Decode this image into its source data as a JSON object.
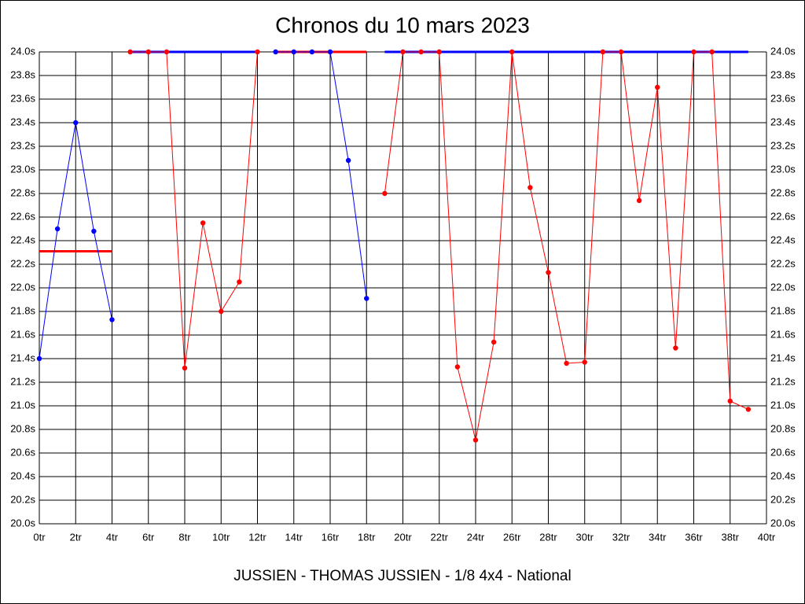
{
  "chart_data": {
    "type": "line",
    "title": "Chronos du 10 mars 2023",
    "subtitle": "JUSSIEN - THOMAS JUSSIEN - 1/8 4x4 - National",
    "xlim": [
      0,
      40
    ],
    "ylim": [
      20.0,
      24.0
    ],
    "grid": true,
    "right_axis_labels": true,
    "xticks": [
      {
        "value": 0,
        "label": "0tr"
      },
      {
        "value": 2,
        "label": "2tr"
      },
      {
        "value": 4,
        "label": "4tr"
      },
      {
        "value": 6,
        "label": "6tr"
      },
      {
        "value": 8,
        "label": "8tr"
      },
      {
        "value": 10,
        "label": "10tr"
      },
      {
        "value": 12,
        "label": "12tr"
      },
      {
        "value": 14,
        "label": "14tr"
      },
      {
        "value": 16,
        "label": "16tr"
      },
      {
        "value": 18,
        "label": "18tr"
      },
      {
        "value": 20,
        "label": "20tr"
      },
      {
        "value": 22,
        "label": "22tr"
      },
      {
        "value": 24,
        "label": "24tr"
      },
      {
        "value": 26,
        "label": "26tr"
      },
      {
        "value": 28,
        "label": "28tr"
      },
      {
        "value": 30,
        "label": "30tr"
      },
      {
        "value": 32,
        "label": "32tr"
      },
      {
        "value": 34,
        "label": "34tr"
      },
      {
        "value": 36,
        "label": "36tr"
      },
      {
        "value": 38,
        "label": "38tr"
      },
      {
        "value": 40,
        "label": "40tr"
      }
    ],
    "yticks": [
      {
        "value": 20.0,
        "label": "20.0s"
      },
      {
        "value": 20.2,
        "label": "20.2s"
      },
      {
        "value": 20.4,
        "label": "20.4s"
      },
      {
        "value": 20.6,
        "label": "20.6s"
      },
      {
        "value": 20.8,
        "label": "20.8s"
      },
      {
        "value": 21.0,
        "label": "21.0s"
      },
      {
        "value": 21.2,
        "label": "21.2s"
      },
      {
        "value": 21.4,
        "label": "21.4s"
      },
      {
        "value": 21.6,
        "label": "21.6s"
      },
      {
        "value": 21.8,
        "label": "21.8s"
      },
      {
        "value": 22.0,
        "label": "22.0s"
      },
      {
        "value": 22.2,
        "label": "22.2s"
      },
      {
        "value": 22.4,
        "label": "22.4s"
      },
      {
        "value": 22.6,
        "label": "22.6s"
      },
      {
        "value": 22.8,
        "label": "22.8s"
      },
      {
        "value": 23.0,
        "label": "23.0s"
      },
      {
        "value": 23.2,
        "label": "23.2s"
      },
      {
        "value": 23.4,
        "label": "23.4s"
      },
      {
        "value": 23.6,
        "label": "23.6s"
      },
      {
        "value": 23.8,
        "label": "23.8s"
      },
      {
        "value": 24.0,
        "label": "24.0s"
      }
    ],
    "series": [
      {
        "color": "#ff0000",
        "markers": false,
        "width": 3,
        "x": [
          0,
          4
        ],
        "values": [
          22.31,
          22.31
        ]
      },
      {
        "color": "#0000ff",
        "markers": false,
        "width": 3,
        "x": [
          5,
          12
        ],
        "values": [
          24.0,
          24.0
        ]
      },
      {
        "color": "#ff0000",
        "markers": false,
        "width": 3,
        "x": [
          13,
          18
        ],
        "values": [
          24.0,
          24.0
        ]
      },
      {
        "color": "#0000ff",
        "markers": false,
        "width": 3,
        "x": [
          19,
          39
        ],
        "values": [
          24.0,
          24.0
        ]
      },
      {
        "color": "#0000ff",
        "markers": true,
        "width": 1,
        "x": [
          0,
          1,
          2,
          3,
          4
        ],
        "values": [
          21.4,
          22.5,
          23.4,
          22.48,
          21.73
        ]
      },
      {
        "color": "#ff0000",
        "markers": true,
        "width": 1,
        "x": [
          5,
          6,
          7,
          8,
          9,
          10,
          11,
          12
        ],
        "values": [
          24.0,
          24.0,
          24.0,
          21.32,
          22.55,
          21.8,
          22.05,
          24.0
        ]
      },
      {
        "color": "#0000ff",
        "markers": true,
        "width": 1,
        "x": [
          13,
          14,
          15,
          16,
          17,
          18
        ],
        "values": [
          24.0,
          24.0,
          24.0,
          24.0,
          23.08,
          21.91
        ]
      },
      {
        "color": "#ff0000",
        "markers": true,
        "width": 1,
        "x": [
          19,
          20,
          21,
          22,
          23,
          24,
          25,
          26,
          27,
          28,
          29,
          30,
          31,
          32,
          33,
          34,
          35,
          36,
          37,
          38,
          39
        ],
        "values": [
          22.8,
          24.0,
          24.0,
          24.0,
          21.33,
          20.71,
          21.54,
          24.0,
          22.85,
          22.13,
          21.36,
          21.37,
          24.0,
          24.0,
          22.74,
          23.7,
          21.49,
          24.0,
          24.0,
          21.04,
          20.97
        ]
      }
    ]
  }
}
